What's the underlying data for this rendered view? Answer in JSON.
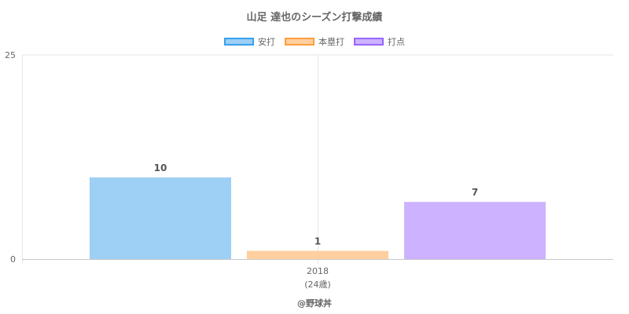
{
  "chart_data": {
    "type": "bar",
    "title": "山足 達也のシーズン打撃成績",
    "categories": [
      "2018"
    ],
    "category_sublabels": [
      "(24歳)"
    ],
    "series": [
      {
        "name": "安打",
        "values": [
          10
        ],
        "color": "#9ecff5",
        "border": "#36a2eb"
      },
      {
        "name": "本塁打",
        "values": [
          1
        ],
        "color": "#ffcf9f",
        "border": "#ff9f40"
      },
      {
        "name": "打点",
        "values": [
          7
        ],
        "color": "#ccb2ff",
        "border": "#9966ff"
      }
    ],
    "ylim": [
      0,
      25
    ],
    "y_ticks": [
      "0",
      "25"
    ],
    "grid": true,
    "legend_position": "top-center",
    "xlabel": "",
    "ylabel": ""
  },
  "footer": {
    "credit": "@野球丼"
  }
}
